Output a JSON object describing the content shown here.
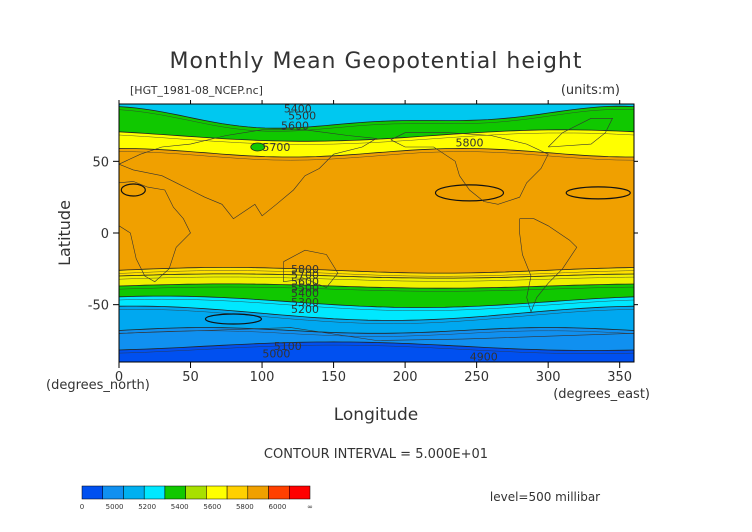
{
  "chart_data": {
    "type": "contour",
    "title": "Monthly Mean Geopotential height",
    "file_label": "[HGT_1981-08_NCEP.nc]",
    "units_label": "(units:m)",
    "xlabel": "Longitude",
    "ylabel": "Latitude",
    "x_unit_label": "(degrees_east)",
    "y_unit_label": "(degrees_north)",
    "x_ticks": [
      "0",
      "50",
      "100",
      "150",
      "200",
      "250",
      "300",
      "350"
    ],
    "x_tick_values": [
      0,
      50,
      100,
      150,
      200,
      250,
      300,
      350
    ],
    "y_ticks": [
      "50",
      "0",
      "-50"
    ],
    "y_tick_values": [
      50,
      0,
      -50
    ],
    "xlim": [
      0,
      360
    ],
    "ylim": [
      -90,
      90
    ],
    "contour_interval_text": "CONTOUR INTERVAL = 5.000E+01",
    "level_text": "level=500 millibar",
    "contour_labels": [
      {
        "text": "5400",
        "lon": 125,
        "lat": 87
      },
      {
        "text": "5500",
        "lon": 128,
        "lat": 82
      },
      {
        "text": "5600",
        "lon": 123,
        "lat": 75
      },
      {
        "text": "5700",
        "lon": 110,
        "lat": 60
      },
      {
        "text": "5800",
        "lon": 245,
        "lat": 63
      },
      {
        "text": "5800",
        "lon": 130,
        "lat": -25
      },
      {
        "text": "5700",
        "lon": 130,
        "lat": -29
      },
      {
        "text": "5600",
        "lon": 130,
        "lat": -34
      },
      {
        "text": "5500",
        "lon": 130,
        "lat": -38
      },
      {
        "text": "5400",
        "lon": 130,
        "lat": -42
      },
      {
        "text": "5300",
        "lon": 130,
        "lat": -48
      },
      {
        "text": "5200",
        "lon": 130,
        "lat": -53
      },
      {
        "text": "5100",
        "lon": 118,
        "lat": -79
      },
      {
        "text": "5000",
        "lon": 110,
        "lat": -84
      },
      {
        "text": "4900",
        "lon": 255,
        "lat": -86
      }
    ],
    "bands": [
      {
        "value": 5450,
        "color": "#00c8f0"
      },
      {
        "value": 5550,
        "color": "#10c800"
      },
      {
        "value": 5650,
        "color": "#ffff00"
      },
      {
        "value": 5850,
        "color": "#f0a000"
      },
      {
        "value": 5750,
        "color": "#ffe000"
      },
      {
        "value": 5650,
        "color": "#f0f000"
      },
      {
        "value": 5550,
        "color": "#10c800"
      },
      {
        "value": 5450,
        "color": "#00e8ff"
      },
      {
        "value": 5300,
        "color": "#00a8f0"
      },
      {
        "value": 5050,
        "color": "#1090f0"
      },
      {
        "value": 4950,
        "color": "#0050f0"
      }
    ],
    "colorbar": {
      "colors": [
        "#0050f0",
        "#1090f0",
        "#00b0f0",
        "#00e8ff",
        "#10c800",
        "#a8e000",
        "#ffff00",
        "#ffd000",
        "#f0a000",
        "#ff4000",
        "#ff0000"
      ],
      "labels": [
        "0",
        "5000",
        "5200",
        "5400",
        "5600",
        "5800",
        "6000",
        "∞"
      ]
    }
  }
}
